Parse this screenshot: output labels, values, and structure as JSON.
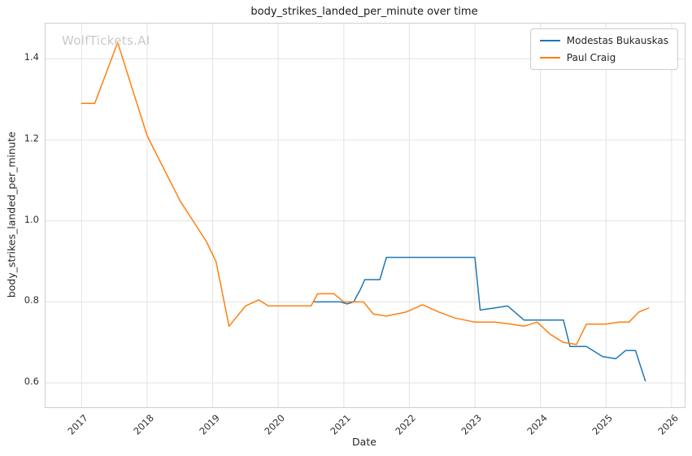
{
  "watermark": "WolfTickets.AI",
  "chart_data": {
    "type": "line",
    "title": "body_strikes_landed_per_minute over time",
    "xlabel": "Date",
    "ylabel": "body_strikes_landed_per_minute",
    "xlim": [
      2016.45,
      2026.2
    ],
    "ylim": [
      0.54,
      1.487
    ],
    "xticks": [
      2017,
      2018,
      2019,
      2020,
      2021,
      2022,
      2023,
      2024,
      2025,
      2026
    ],
    "yticks": [
      0.6,
      0.8,
      1.0,
      1.2,
      1.4
    ],
    "grid": true,
    "grid_color": "#e3e3e3",
    "legend_position": "upper right",
    "series": [
      {
        "name": "Modestas Bukauskas",
        "color": "#1f77b4",
        "points": [
          [
            2020.55,
            0.8
          ],
          [
            2020.95,
            0.8
          ],
          [
            2021.05,
            0.795
          ],
          [
            2021.15,
            0.8
          ],
          [
            2021.25,
            0.83
          ],
          [
            2021.32,
            0.855
          ],
          [
            2021.55,
            0.855
          ],
          [
            2021.65,
            0.91
          ],
          [
            2023.0,
            0.91
          ],
          [
            2023.08,
            0.78
          ],
          [
            2023.3,
            0.785
          ],
          [
            2023.5,
            0.79
          ],
          [
            2023.75,
            0.755
          ],
          [
            2024.35,
            0.755
          ],
          [
            2024.45,
            0.69
          ],
          [
            2024.7,
            0.69
          ],
          [
            2024.95,
            0.665
          ],
          [
            2025.15,
            0.66
          ],
          [
            2025.3,
            0.68
          ],
          [
            2025.45,
            0.68
          ],
          [
            2025.6,
            0.605
          ]
        ]
      },
      {
        "name": "Paul Craig",
        "color": "#ff7f0e",
        "points": [
          [
            2017.0,
            1.29
          ],
          [
            2017.2,
            1.29
          ],
          [
            2017.55,
            1.44
          ],
          [
            2018.0,
            1.21
          ],
          [
            2018.5,
            1.05
          ],
          [
            2018.9,
            0.95
          ],
          [
            2019.05,
            0.9
          ],
          [
            2019.25,
            0.74
          ],
          [
            2019.5,
            0.79
          ],
          [
            2019.7,
            0.805
          ],
          [
            2019.85,
            0.79
          ],
          [
            2020.5,
            0.79
          ],
          [
            2020.6,
            0.82
          ],
          [
            2020.85,
            0.82
          ],
          [
            2021.0,
            0.8
          ],
          [
            2021.3,
            0.8
          ],
          [
            2021.45,
            0.77
          ],
          [
            2021.65,
            0.765
          ],
          [
            2021.95,
            0.775
          ],
          [
            2022.2,
            0.793
          ],
          [
            2022.45,
            0.775
          ],
          [
            2022.7,
            0.76
          ],
          [
            2023.0,
            0.75
          ],
          [
            2023.3,
            0.75
          ],
          [
            2023.55,
            0.745
          ],
          [
            2023.75,
            0.74
          ],
          [
            2023.95,
            0.75
          ],
          [
            2024.15,
            0.72
          ],
          [
            2024.35,
            0.7
          ],
          [
            2024.55,
            0.695
          ],
          [
            2024.7,
            0.745
          ],
          [
            2025.0,
            0.745
          ],
          [
            2025.2,
            0.75
          ],
          [
            2025.35,
            0.75
          ],
          [
            2025.5,
            0.775
          ],
          [
            2025.65,
            0.785
          ]
        ]
      }
    ]
  }
}
